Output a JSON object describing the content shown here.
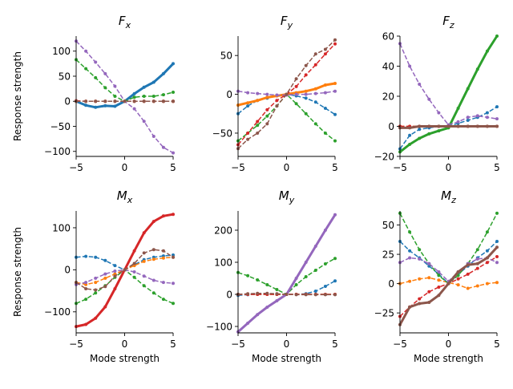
{
  "figure": {
    "colors": {
      "c0": "#1f77b4",
      "c1": "#ff7f0e",
      "c2": "#2ca02c",
      "c3": "#d62728",
      "c4": "#9467bd",
      "c5": "#8c564b"
    }
  },
  "chart_data": [
    {
      "type": "line",
      "title": "F_x",
      "title_main": "F",
      "title_sub": "x",
      "xlabel": "",
      "ylabel": "Response strength",
      "xlim": [
        -5,
        5
      ],
      "ylim": [
        -110,
        130
      ],
      "xticks": [
        -5,
        0,
        5
      ],
      "yticks": [
        -100,
        -50,
        0,
        50,
        100
      ],
      "grid": false,
      "legend": "none",
      "x": [
        -5,
        -4,
        -3,
        -2,
        -1,
        0,
        1,
        2,
        3,
        4,
        5
      ],
      "series": [
        {
          "color": "c0",
          "style": "solid",
          "values": [
            0,
            -8,
            -12,
            -9,
            -10,
            0,
            15,
            28,
            38,
            55,
            75
          ]
        },
        {
          "color": "c1",
          "style": "dashed",
          "values": [
            0,
            0,
            0,
            0,
            0,
            0,
            0,
            0,
            0,
            0,
            0
          ]
        },
        {
          "color": "c2",
          "style": "dashed",
          "values": [
            83,
            65,
            47,
            27,
            10,
            0,
            8,
            10,
            10,
            13,
            18
          ]
        },
        {
          "color": "c3",
          "style": "dashed",
          "values": [
            1,
            0,
            0,
            0,
            0,
            0,
            0,
            0,
            0,
            0,
            0
          ]
        },
        {
          "color": "c4",
          "style": "dashed",
          "values": [
            120,
            100,
            78,
            55,
            30,
            0,
            -15,
            -40,
            -70,
            -92,
            -103
          ]
        },
        {
          "color": "c5",
          "style": "dashed",
          "values": [
            0,
            0,
            0,
            0,
            0,
            0,
            0,
            0,
            0,
            0,
            0
          ]
        }
      ]
    },
    {
      "type": "line",
      "title": "F_y",
      "title_main": "F",
      "title_sub": "y",
      "xlabel": "",
      "ylabel": "",
      "xlim": [
        -5,
        5
      ],
      "ylim": [
        -80,
        75
      ],
      "xticks": [
        -5,
        0,
        5
      ],
      "yticks": [
        -50,
        0,
        50
      ],
      "grid": false,
      "legend": "none",
      "x": [
        -5,
        -4,
        -3,
        -2,
        -1,
        0,
        1,
        2,
        3,
        4,
        5
      ],
      "series": [
        {
          "color": "c0",
          "style": "dashed",
          "values": [
            -25,
            -15,
            -8,
            -5,
            -2,
            0,
            -2,
            -5,
            -10,
            -18,
            -26
          ]
        },
        {
          "color": "c1",
          "style": "solid",
          "values": [
            -14,
            -11,
            -8,
            -4,
            -2,
            0,
            2,
            4,
            7,
            12,
            14
          ]
        },
        {
          "color": "c2",
          "style": "dashed",
          "values": [
            -60,
            -50,
            -40,
            -28,
            -15,
            0,
            -12,
            -25,
            -38,
            -50,
            -60
          ]
        },
        {
          "color": "c3",
          "style": "dashed",
          "values": [
            -65,
            -50,
            -35,
            -20,
            -8,
            0,
            10,
            25,
            38,
            52,
            65
          ]
        },
        {
          "color": "c4",
          "style": "dashed",
          "values": [
            4,
            2,
            1,
            0,
            -1,
            -1,
            0,
            0,
            1,
            2,
            4
          ]
        },
        {
          "color": "c5",
          "style": "dashed",
          "values": [
            -70,
            -58,
            -50,
            -38,
            -15,
            0,
            20,
            37,
            52,
            58,
            70
          ]
        }
      ]
    },
    {
      "type": "line",
      "title": "F_z",
      "title_main": "F",
      "title_sub": "z",
      "xlabel": "",
      "ylabel": "",
      "xlim": [
        -5,
        5
      ],
      "ylim": [
        -20,
        60
      ],
      "xticks": [
        -5,
        0,
        5
      ],
      "yticks": [
        -20,
        0,
        20,
        40,
        60
      ],
      "grid": false,
      "legend": "none",
      "x": [
        -5,
        -4,
        -3,
        -2,
        -1,
        0,
        1,
        2,
        3,
        4,
        5
      ],
      "series": [
        {
          "color": "c0",
          "style": "dashed",
          "values": [
            -15,
            -6,
            -2,
            -1,
            0,
            0,
            2,
            4,
            6,
            9,
            13
          ]
        },
        {
          "color": "c1",
          "style": "dashed",
          "values": [
            0,
            0,
            0,
            0,
            0,
            0,
            0,
            0,
            0,
            0,
            0
          ]
        },
        {
          "color": "c2",
          "style": "solid",
          "values": [
            -17,
            -12,
            -8,
            -5,
            -3,
            -1,
            12,
            25,
            38,
            50,
            60
          ]
        },
        {
          "color": "c3",
          "style": "dashed",
          "values": [
            0,
            0,
            0,
            0,
            0,
            0,
            0,
            0,
            0,
            0,
            0
          ]
        },
        {
          "color": "c4",
          "style": "dashed",
          "values": [
            55,
            40,
            28,
            18,
            9,
            1,
            3,
            6,
            7,
            6,
            5
          ]
        },
        {
          "color": "c5",
          "style": "solid",
          "values": [
            -1,
            -1,
            0,
            0,
            0,
            0,
            0,
            0,
            0,
            0,
            0
          ]
        }
      ]
    },
    {
      "type": "line",
      "title": "M_x",
      "title_main": "M",
      "title_sub": "x",
      "xlabel": "Mode strength",
      "ylabel": "Response strength",
      "xlim": [
        -5,
        5
      ],
      "ylim": [
        -150,
        140
      ],
      "xticks": [
        -5,
        0,
        5
      ],
      "yticks": [
        -100,
        0,
        100
      ],
      "grid": false,
      "legend": "none",
      "x": [
        -5,
        -4,
        -3,
        -2,
        -1,
        0,
        1,
        2,
        3,
        4,
        5
      ],
      "series": [
        {
          "color": "c0",
          "style": "dashed",
          "values": [
            30,
            32,
            30,
            22,
            10,
            0,
            12,
            24,
            30,
            33,
            35
          ]
        },
        {
          "color": "c1",
          "style": "dashed",
          "values": [
            -30,
            -35,
            -30,
            -20,
            -10,
            0,
            10,
            20,
            25,
            28,
            30
          ]
        },
        {
          "color": "c2",
          "style": "dashed",
          "values": [
            -80,
            -70,
            -55,
            -38,
            -18,
            0,
            -18,
            -38,
            -55,
            -70,
            -80
          ]
        },
        {
          "color": "c3",
          "style": "solid",
          "values": [
            -135,
            -130,
            -115,
            -88,
            -45,
            0,
            45,
            88,
            115,
            128,
            132
          ]
        },
        {
          "color": "c4",
          "style": "dashed",
          "values": [
            -35,
            -30,
            -20,
            -10,
            -3,
            0,
            -5,
            -15,
            -25,
            -30,
            -32
          ]
        },
        {
          "color": "c5",
          "style": "dashed",
          "values": [
            -30,
            -45,
            -48,
            -40,
            -15,
            0,
            15,
            40,
            48,
            45,
            30
          ]
        }
      ]
    },
    {
      "type": "line",
      "title": "M_y",
      "title_main": "M",
      "title_sub": "y",
      "xlabel": "Mode strength",
      "ylabel": "",
      "xlim": [
        -5,
        5
      ],
      "ylim": [
        -120,
        260
      ],
      "xticks": [
        -5,
        0,
        5
      ],
      "yticks": [
        -100,
        0,
        100,
        200
      ],
      "grid": false,
      "legend": "none",
      "x": [
        -5,
        -4,
        -3,
        -2,
        -1,
        0,
        1,
        2,
        3,
        4,
        5
      ],
      "series": [
        {
          "color": "c0",
          "style": "dashed",
          "values": [
            -3,
            -1,
            0,
            0,
            0,
            0,
            0,
            2,
            10,
            25,
            42
          ]
        },
        {
          "color": "c1",
          "style": "dashed",
          "values": [
            0,
            0,
            0,
            0,
            0,
            0,
            0,
            0,
            0,
            0,
            0
          ]
        },
        {
          "color": "c2",
          "style": "dashed",
          "values": [
            68,
            58,
            45,
            30,
            15,
            0,
            30,
            55,
            75,
            95,
            112
          ]
        },
        {
          "color": "c3",
          "style": "dashed",
          "values": [
            0,
            0,
            0,
            0,
            0,
            0,
            0,
            0,
            0,
            0,
            0
          ]
        },
        {
          "color": "c4",
          "style": "solid",
          "values": [
            -117,
            -90,
            -63,
            -40,
            -20,
            0,
            50,
            100,
            150,
            200,
            248
          ]
        },
        {
          "color": "c5",
          "style": "dashed",
          "values": [
            0,
            2,
            3,
            3,
            2,
            0,
            -1,
            -1,
            -1,
            -1,
            -1
          ]
        }
      ]
    },
    {
      "type": "line",
      "title": "M_z",
      "title_main": "M",
      "title_sub": "z",
      "xlabel": "Mode strength",
      "ylabel": "",
      "xlim": [
        -5,
        5
      ],
      "ylim": [
        -42,
        62
      ],
      "xticks": [
        -5,
        0,
        5
      ],
      "yticks": [
        -25,
        0,
        25,
        50
      ],
      "grid": false,
      "legend": "none",
      "x": [
        -5,
        -4,
        -3,
        -2,
        -1,
        0,
        1,
        2,
        3,
        4,
        5
      ],
      "series": [
        {
          "color": "c0",
          "style": "dashed",
          "values": [
            36,
            28,
            22,
            15,
            8,
            0,
            8,
            15,
            22,
            28,
            36
          ]
        },
        {
          "color": "c1",
          "style": "dashed",
          "values": [
            0,
            2,
            4,
            5,
            3,
            1,
            -1,
            -4,
            -2,
            0,
            1
          ]
        },
        {
          "color": "c2",
          "style": "dashed",
          "values": [
            60,
            44,
            29,
            17,
            7,
            0,
            7,
            17,
            29,
            44,
            60
          ]
        },
        {
          "color": "c3",
          "style": "dashed",
          "values": [
            -28,
            -20,
            -13,
            -7,
            -3,
            0,
            4,
            8,
            13,
            18,
            23
          ]
        },
        {
          "color": "c4",
          "style": "dashed",
          "values": [
            18,
            22,
            21,
            17,
            10,
            2,
            10,
            17,
            21,
            22,
            18
          ]
        },
        {
          "color": "c5",
          "style": "solid",
          "values": [
            -35,
            -20,
            -17,
            -16,
            -10,
            0,
            10,
            16,
            17,
            22,
            31
          ]
        }
      ]
    }
  ]
}
